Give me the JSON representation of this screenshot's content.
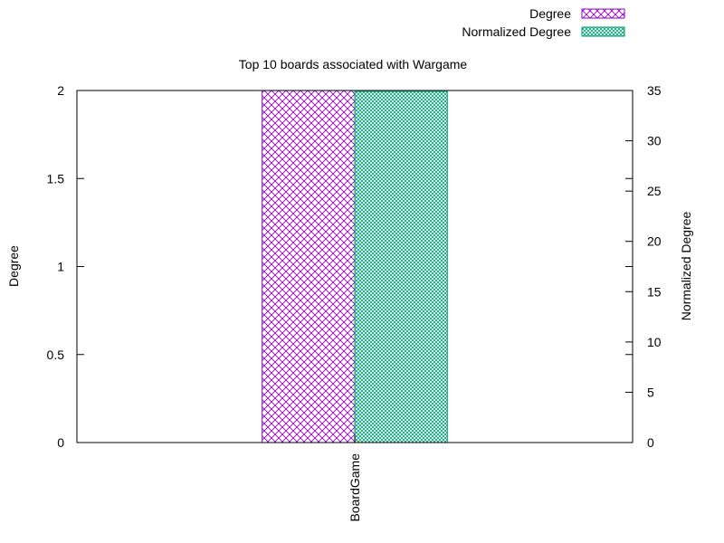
{
  "chart_data": {
    "type": "bar",
    "title": "Top 10 boards associated with Wargame",
    "categories": [
      "BoardGame"
    ],
    "series": [
      {
        "name": "Degree",
        "axis": "left",
        "values": [
          2
        ],
        "color": "#9400d3",
        "pattern": "crosshatch"
      },
      {
        "name": "Normalized Degree",
        "axis": "right",
        "values": [
          34.9
        ],
        "color": "#009e73",
        "pattern": "fine-dots"
      }
    ],
    "ylabel": "Degree",
    "y2label": "Normalized Degree",
    "ylim": [
      0,
      2
    ],
    "y2lim": [
      0,
      35
    ],
    "yticks": [
      "0",
      "0.5",
      "1",
      "1.5",
      "2"
    ],
    "y2ticks": [
      "0",
      "5",
      "10",
      "15",
      "20",
      "25",
      "30",
      "35"
    ],
    "legend_position": "top-right",
    "grid": false
  }
}
